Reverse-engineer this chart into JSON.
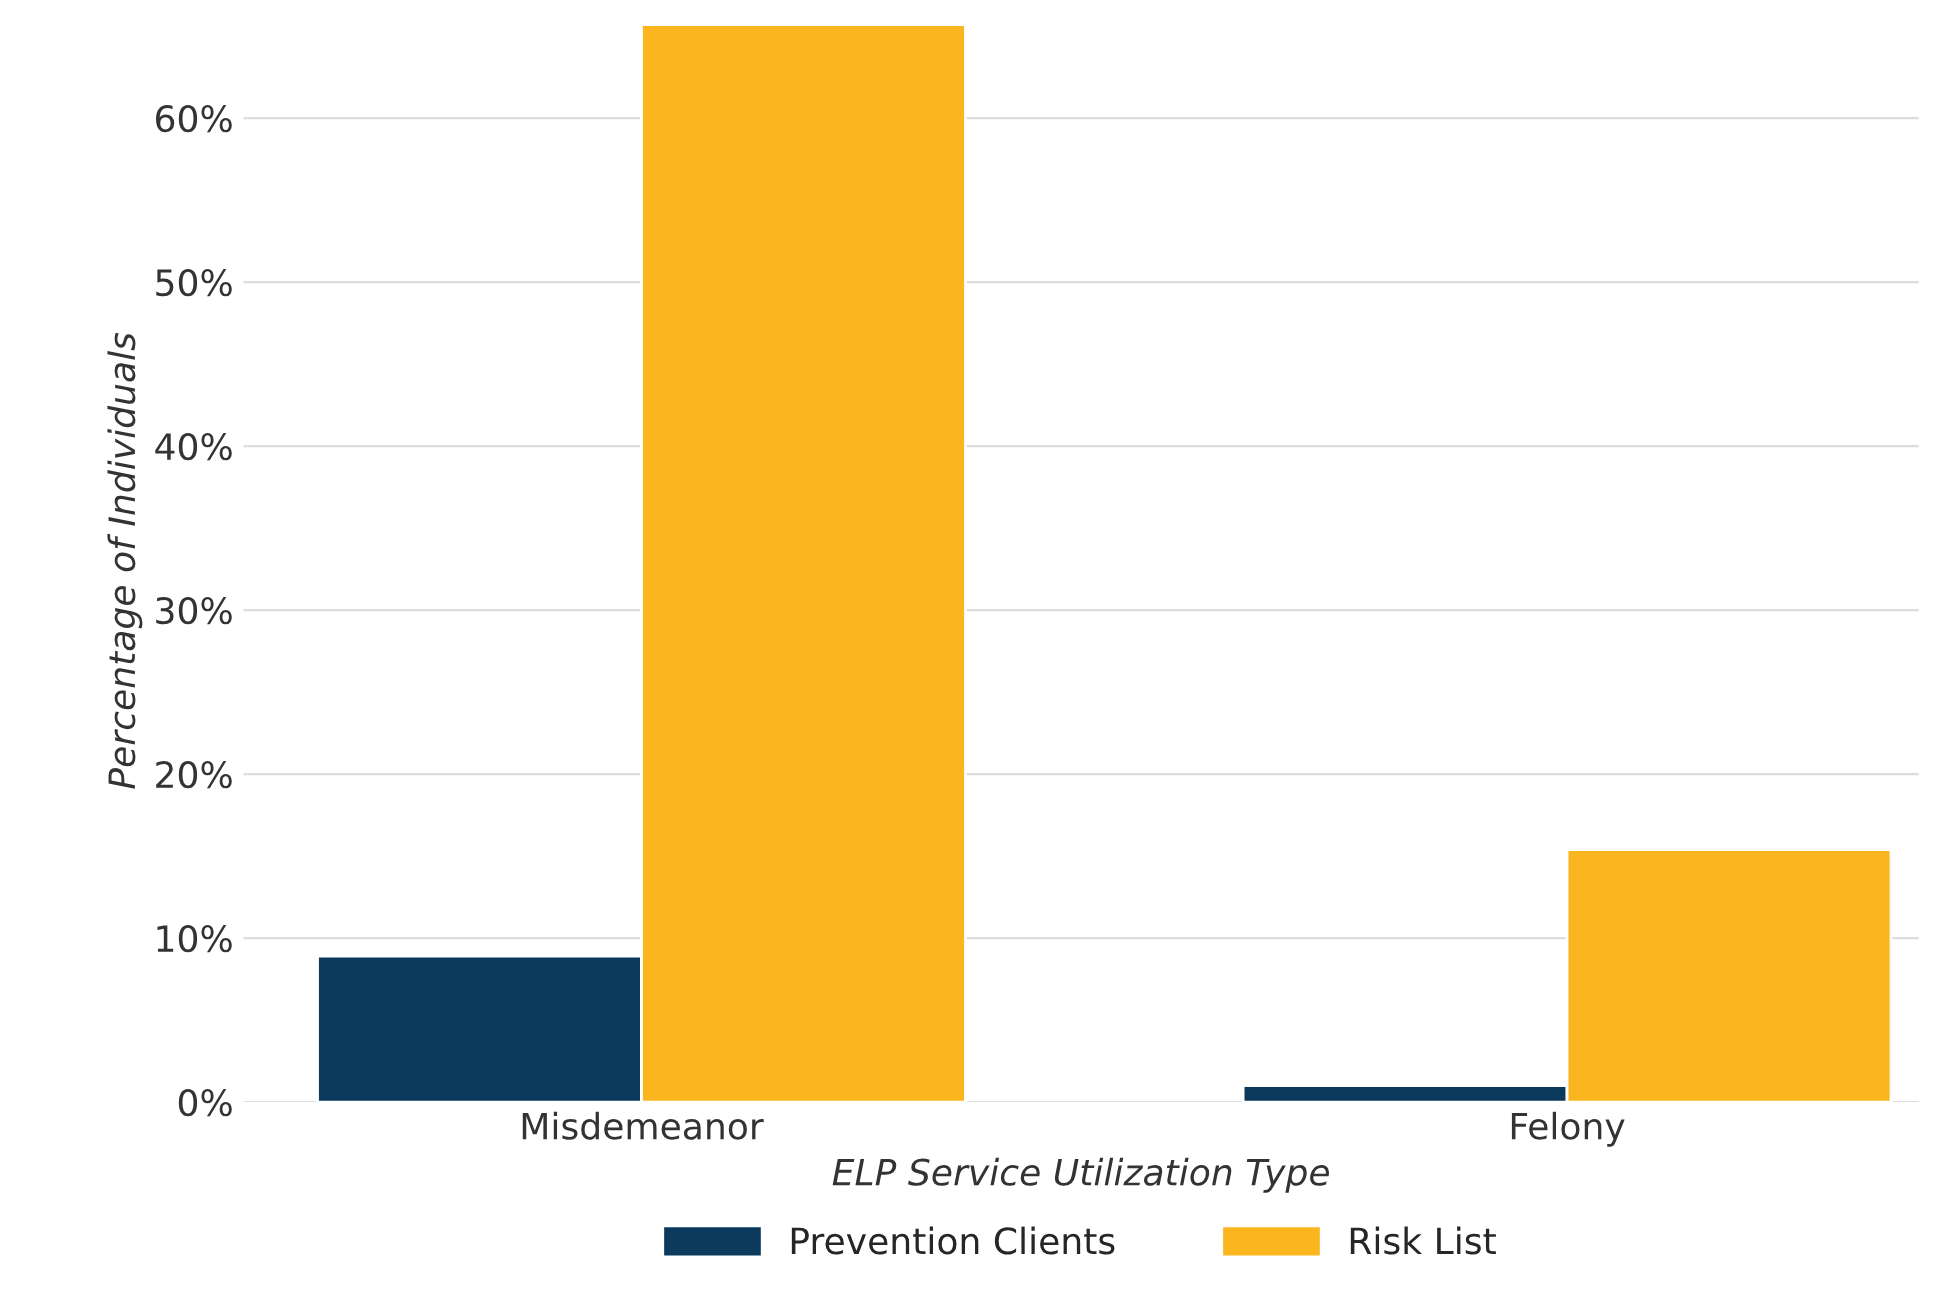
{
  "chart_data": {
    "type": "bar",
    "xlabel": "ELP Service Utilization Type",
    "ylabel": "Percentage of Individuals",
    "categories": [
      "Misdemeanor",
      "Felony"
    ],
    "series": [
      {
        "name": "Prevention Clients",
        "color": "#0b3a5c",
        "values": [
          8.9,
          1.0
        ]
      },
      {
        "name": "Risk List",
        "color": "#fbb51f",
        "values": [
          65.7,
          15.4
        ]
      }
    ],
    "ylim": [
      0,
      66
    ],
    "yticks": [
      {
        "value": 0,
        "label": "0%"
      },
      {
        "value": 10,
        "label": "10%"
      },
      {
        "value": 20,
        "label": "20%"
      },
      {
        "value": 30,
        "label": "30%"
      },
      {
        "value": 40,
        "label": "40%"
      },
      {
        "value": 50,
        "label": "50%"
      },
      {
        "value": 60,
        "label": "60%"
      }
    ],
    "grid": "y",
    "legend": "bottom"
  }
}
